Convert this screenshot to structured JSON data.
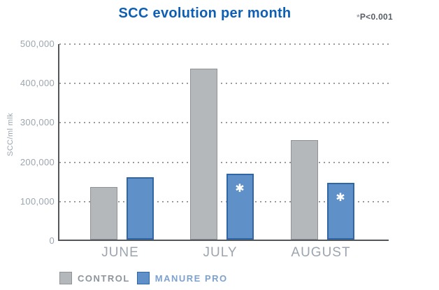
{
  "header": {
    "title": "SCC evolution per month",
    "note_asterisk": "*",
    "note_text": "P<0.001"
  },
  "chart_data": {
    "type": "bar",
    "title": "SCC evolution per month",
    "categories": [
      "JUNE",
      "JULY",
      "AUGUST"
    ],
    "series": [
      {
        "name": "CONTROL",
        "fill": "#b5b8bb",
        "border": "#8f9296",
        "legend_text_color": "#8d949c",
        "values": [
          133000,
          435000,
          252000
        ],
        "significant": [
          false,
          false,
          false
        ]
      },
      {
        "name": "MANURE PRO",
        "fill": "#5f91c8",
        "border": "#2f67a6",
        "legend_text_color": "#7da2cf",
        "values": [
          158000,
          168000,
          144000
        ],
        "significant": [
          false,
          true,
          true
        ]
      }
    ],
    "significance_marker": "✱",
    "significance_note": "*P<0.001",
    "xlabel": "",
    "ylabel": "SCC/ml mlk",
    "ylim": [
      0,
      500000
    ],
    "ytick_step": 100000,
    "ytick_labels": [
      "500,000",
      "400,000",
      "300,000",
      "200,000",
      "100,000",
      "0"
    ],
    "grid": "horizontal-dotted",
    "legend_position": "bottom-left",
    "accent_colors": {
      "title_blue": "#0e5fb4",
      "axis_gray": "#53575c",
      "tick_gray": "#9ca5af"
    }
  }
}
